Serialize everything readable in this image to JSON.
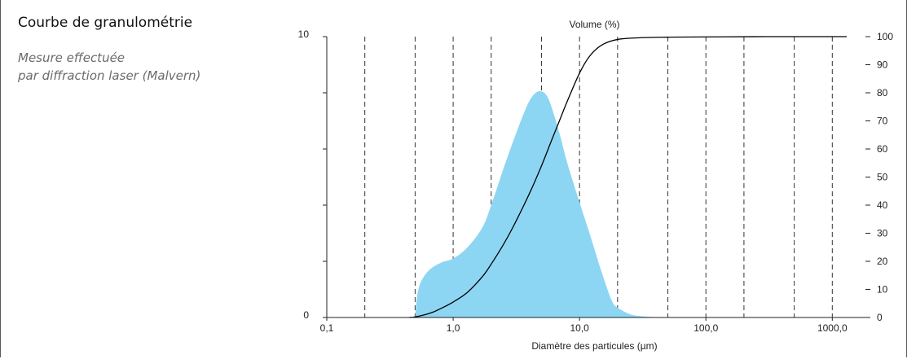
{
  "panel": {
    "title": "Courbe de granulométrie",
    "subtitle_lines": [
      "Mesure effectuée",
      "par diffraction laser (Malvern)"
    ]
  },
  "chart_data": {
    "type": "area",
    "title": "",
    "xlabel": "Diamètre des particules (µm)",
    "ylabel": "",
    "y2label": "Volume (%)",
    "xscale": "log",
    "xlim": [
      0.1,
      2000
    ],
    "ylim": [
      0,
      10
    ],
    "y2lim": [
      0,
      100
    ],
    "x_tick_labels": [
      {
        "x": 0.1,
        "label": "0,1"
      },
      {
        "x": 1,
        "label": "1,0"
      },
      {
        "x": 10,
        "label": "10,0"
      },
      {
        "x": 100,
        "label": "100,0"
      },
      {
        "x": 1000,
        "label": "1000,0"
      }
    ],
    "y_tick_labels": [
      {
        "y": 0,
        "label": "0"
      },
      {
        "y": 10,
        "label": "10"
      }
    ],
    "y_minor_ticks": [
      2,
      4,
      6,
      8
    ],
    "y2_tick_labels": [
      {
        "y": 0,
        "label": "0"
      },
      {
        "y": 10,
        "label": "10"
      },
      {
        "y": 20,
        "label": "20"
      },
      {
        "y": 30,
        "label": "30"
      },
      {
        "y": 40,
        "label": "40"
      },
      {
        "y": 50,
        "label": "50"
      },
      {
        "y": 60,
        "label": "60"
      },
      {
        "y": 70,
        "label": "70"
      },
      {
        "y": 80,
        "label": "80"
      },
      {
        "y": 90,
        "label": "90"
      },
      {
        "y": 100,
        "label": "100"
      }
    ],
    "vertical_gridlines_x": [
      0.2,
      0.5,
      1,
      2,
      5,
      10,
      20,
      50,
      100,
      200,
      500,
      1000
    ],
    "grid": "dashed vertical",
    "series": [
      {
        "kind": "area",
        "axis": "left",
        "color": "#8dd6f3",
        "x": [
          0.5,
          0.52,
          0.56,
          0.65,
          0.8,
          1.0,
          1.3,
          1.7,
          2.0,
          2.5,
          3.0,
          3.5,
          4.0,
          4.5,
          5.0,
          5.5,
          6.0,
          7.0,
          8.0,
          10.0,
          12.0,
          15.0,
          18.0,
          20.0,
          25.0,
          30.0,
          40.0,
          50.0
        ],
        "y": [
          0.0,
          0.8,
          1.3,
          1.7,
          1.95,
          2.1,
          2.5,
          3.2,
          4.0,
          5.3,
          6.3,
          7.1,
          7.7,
          8.0,
          8.05,
          7.9,
          7.5,
          6.5,
          5.5,
          4.1,
          3.0,
          1.6,
          0.6,
          0.35,
          0.12,
          0.05,
          0.01,
          0.0
        ]
      },
      {
        "kind": "line",
        "axis": "right",
        "color": "#000000",
        "x": [
          0.45,
          0.5,
          0.6,
          0.7,
          0.8,
          1.0,
          1.3,
          1.7,
          2.0,
          2.5,
          3.0,
          4.0,
          5.0,
          6.0,
          7.0,
          8.0,
          10.0,
          12.0,
          15.0,
          20.0,
          30.0,
          50.0,
          100.0,
          300.0,
          1000.0,
          1300.0
        ],
        "y": [
          0.0,
          0.2,
          1.0,
          2.0,
          3.2,
          5.5,
          9.0,
          14.5,
          19.0,
          26.0,
          32.5,
          44.0,
          54.0,
          63.0,
          70.5,
          77.0,
          87.0,
          93.0,
          97.0,
          99.0,
          99.6,
          99.8,
          99.9,
          100.0,
          100.0,
          100.0
        ]
      }
    ]
  }
}
